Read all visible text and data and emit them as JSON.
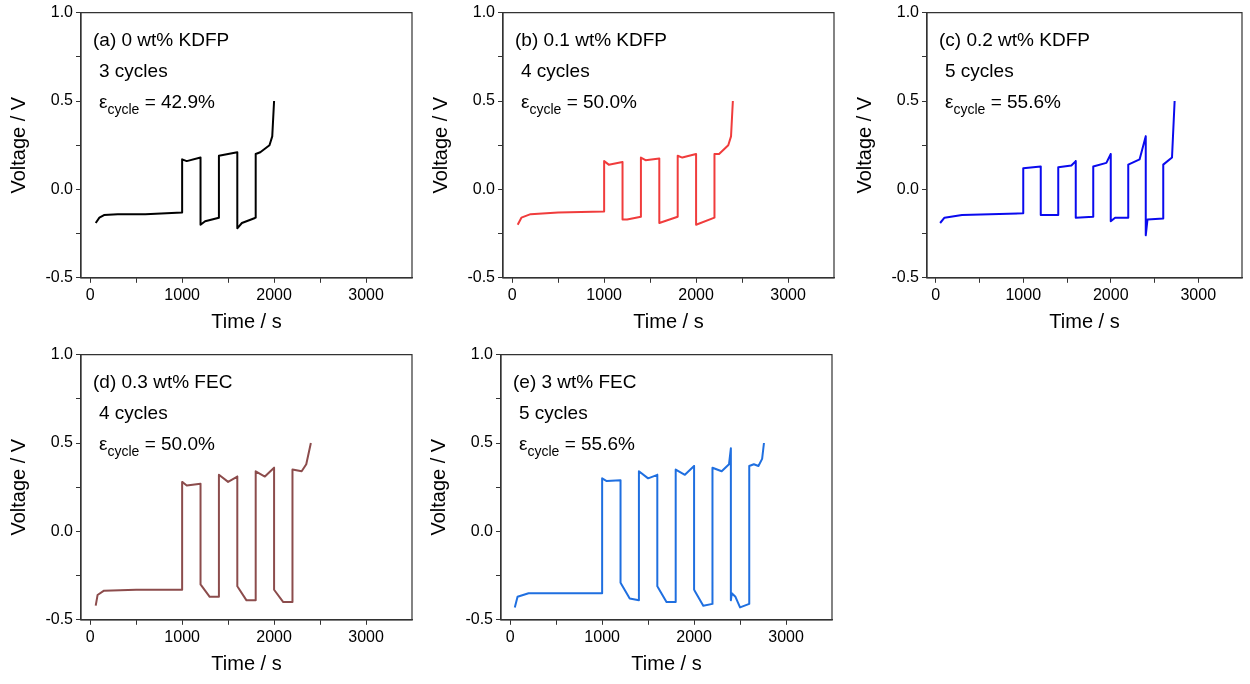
{
  "chart_data": [
    {
      "type": "line",
      "xlabel": "Time / s",
      "ylabel": "Voltage / V",
      "xlim": [
        -100,
        3500
      ],
      "ylim": [
        -0.5,
        1.0
      ],
      "grid": false,
      "legend": false,
      "marker": "none",
      "line_style": "solid",
      "xticks": [
        0,
        {
          "value": 500,
          "label": null
        },
        1000,
        {
          "value": 1500,
          "label": null
        },
        2000,
        {
          "value": 2500,
          "label": null
        },
        3000
      ],
      "yticks": [
        {
          "value": -0.5,
          "label": "-0.5"
        },
        {
          "value": -0.25,
          "label": null
        },
        {
          "value": 0,
          "label": "0.0"
        },
        {
          "value": 0.25,
          "label": null
        },
        {
          "value": 0.5,
          "label": "0.5"
        },
        {
          "value": 0.75,
          "label": null
        },
        {
          "value": 1,
          "label": "1.0"
        }
      ],
      "annotations": [
        "(a) 0 wt% KDFP",
        "3 cycles",
        "ε$_{cycle}$ = 42.9%"
      ],
      "series": [
        {
          "color": "#000000",
          "x": [
            60,
            100,
            150,
            300,
            600,
            1000,
            1000,
            1050,
            1200,
            1200,
            1250,
            1400,
            1400,
            1600,
            1600,
            1650,
            1800,
            1800,
            1850,
            1950,
            1980,
            2000
          ],
          "values": [
            -0.19,
            -0.16,
            -0.145,
            -0.14,
            -0.14,
            -0.13,
            0.17,
            0.16,
            0.18,
            -0.2,
            -0.18,
            -0.16,
            0.19,
            0.21,
            -0.22,
            -0.19,
            -0.16,
            0.2,
            0.21,
            0.25,
            0.3,
            0.5
          ]
        }
      ]
    },
    {
      "type": "line",
      "xlabel": "Time / s",
      "ylabel": "Voltage / V",
      "xlim": [
        -100,
        3500
      ],
      "ylim": [
        -0.5,
        1.0
      ],
      "grid": false,
      "legend": false,
      "marker": "none",
      "line_style": "solid",
      "xticks": [
        0,
        {
          "value": 500,
          "label": null
        },
        1000,
        {
          "value": 1500,
          "label": null
        },
        2000,
        {
          "value": 2500,
          "label": null
        },
        3000
      ],
      "yticks": [
        {
          "value": -0.5,
          "label": "-0.5"
        },
        {
          "value": -0.25,
          "label": null
        },
        {
          "value": 0,
          "label": "0.0"
        },
        {
          "value": 0.25,
          "label": null
        },
        {
          "value": 0.5,
          "label": "0.5"
        },
        {
          "value": 0.75,
          "label": null
        },
        {
          "value": 1,
          "label": "1.0"
        }
      ],
      "annotations": [
        "(b) 0.1 wt% KDFP",
        "4 cycles",
        "ε$_{cycle}$ = 50.0%"
      ],
      "series": [
        {
          "color": "#f03c3c",
          "x": [
            60,
            100,
            200,
            500,
            1000,
            1000,
            1050,
            1200,
            1200,
            1250,
            1400,
            1400,
            1450,
            1600,
            1600,
            1800,
            1800,
            1850,
            2000,
            2000,
            2200,
            2200,
            2250,
            2350,
            2380,
            2400
          ],
          "values": [
            -0.2,
            -0.16,
            -0.14,
            -0.13,
            -0.125,
            0.16,
            0.14,
            0.155,
            -0.17,
            -0.17,
            -0.155,
            0.18,
            0.165,
            0.175,
            -0.19,
            -0.155,
            0.19,
            0.18,
            0.2,
            -0.2,
            -0.16,
            0.2,
            0.2,
            0.25,
            0.3,
            0.5
          ]
        }
      ]
    },
    {
      "type": "line",
      "xlabel": "Time / s",
      "ylabel": "Voltage / V",
      "xlim": [
        -100,
        3500
      ],
      "ylim": [
        -0.5,
        1.0
      ],
      "grid": false,
      "legend": false,
      "marker": "none",
      "line_style": "solid",
      "xticks": [
        0,
        {
          "value": 500,
          "label": null
        },
        1000,
        {
          "value": 1500,
          "label": null
        },
        2000,
        {
          "value": 2500,
          "label": null
        },
        3000
      ],
      "yticks": [
        {
          "value": -0.5,
          "label": "-0.5"
        },
        {
          "value": -0.25,
          "label": null
        },
        {
          "value": 0,
          "label": "0.0"
        },
        {
          "value": 0.25,
          "label": null
        },
        {
          "value": 0.5,
          "label": "0.5"
        },
        {
          "value": 0.75,
          "label": null
        },
        {
          "value": 1,
          "label": "1.0"
        }
      ],
      "annotations": [
        "(c) 0.2 wt% KDFP",
        "5 cycles",
        "ε$_{cycle}$ = 55.6%"
      ],
      "series": [
        {
          "color": "#0a0aee",
          "x": [
            50,
            100,
            300,
            1000,
            1000,
            1200,
            1200,
            1400,
            1400,
            1550,
            1600,
            1600,
            1800,
            1800,
            1950,
            2000,
            2000,
            2050,
            2200,
            2200,
            2330,
            2400,
            2400,
            2420,
            2600,
            2600,
            2700,
            2730
          ],
          "values": [
            -0.19,
            -0.16,
            -0.145,
            -0.135,
            0.12,
            0.13,
            -0.145,
            -0.145,
            0.125,
            0.135,
            0.16,
            -0.16,
            -0.155,
            0.13,
            0.15,
            0.2,
            -0.18,
            -0.16,
            -0.16,
            0.14,
            0.17,
            0.3,
            -0.26,
            -0.17,
            -0.165,
            0.14,
            0.18,
            0.5
          ]
        }
      ]
    },
    {
      "type": "line",
      "xlabel": "Time / s",
      "ylabel": "Voltage / V",
      "xlim": [
        -100,
        3500
      ],
      "ylim": [
        -0.5,
        1.0
      ],
      "grid": false,
      "legend": false,
      "marker": "none",
      "line_style": "solid",
      "xticks": [
        0,
        {
          "value": 500,
          "label": null
        },
        1000,
        {
          "value": 1500,
          "label": null
        },
        2000,
        {
          "value": 2500,
          "label": null
        },
        3000
      ],
      "yticks": [
        {
          "value": -0.5,
          "label": "-0.5"
        },
        {
          "value": -0.25,
          "label": null
        },
        {
          "value": 0,
          "label": "0.0"
        },
        {
          "value": 0.25,
          "label": null
        },
        {
          "value": 0.5,
          "label": "0.5"
        },
        {
          "value": 0.75,
          "label": null
        },
        {
          "value": 1,
          "label": "1.0"
        }
      ],
      "annotations": [
        "(d) 0.3 wt% FEC",
        "4 cycles",
        "ε$_{cycle}$ = 50.0%"
      ],
      "series": [
        {
          "color": "#8c4c4c",
          "x": [
            60,
            80,
            150,
            500,
            1000,
            1000,
            1050,
            1200,
            1200,
            1300,
            1400,
            1400,
            1500,
            1600,
            1600,
            1700,
            1800,
            1800,
            1900,
            2000,
            2000,
            2100,
            2200,
            2200,
            2300,
            2350,
            2400
          ],
          "values": [
            -0.42,
            -0.36,
            -0.335,
            -0.33,
            -0.33,
            0.28,
            0.26,
            0.27,
            -0.3,
            -0.37,
            -0.37,
            0.32,
            0.28,
            0.31,
            -0.31,
            -0.39,
            -0.39,
            0.34,
            0.31,
            0.36,
            -0.33,
            -0.4,
            -0.4,
            0.35,
            0.34,
            0.38,
            0.5
          ]
        }
      ]
    },
    {
      "type": "line",
      "xlabel": "Time / s",
      "ylabel": "Voltage / V",
      "xlim": [
        -100,
        3500
      ],
      "ylim": [
        -0.5,
        1.0
      ],
      "grid": false,
      "legend": false,
      "marker": "none",
      "line_style": "solid",
      "xticks": [
        0,
        {
          "value": 500,
          "label": null
        },
        1000,
        {
          "value": 1500,
          "label": null
        },
        2000,
        {
          "value": 2500,
          "label": null
        },
        3000
      ],
      "yticks": [
        {
          "value": -0.5,
          "label": "-0.5"
        },
        {
          "value": -0.25,
          "label": null
        },
        {
          "value": 0,
          "label": "0.0"
        },
        {
          "value": 0.25,
          "label": null
        },
        {
          "value": 0.5,
          "label": "0.5"
        },
        {
          "value": 0.75,
          "label": null
        },
        {
          "value": 1,
          "label": "1.0"
        }
      ],
      "annotations": [
        "(e) 3 wt% FEC",
        "5 cycles",
        "ε$_{cycle}$ = 55.6%"
      ],
      "series": [
        {
          "color": "#1f6fe0",
          "x": [
            50,
            80,
            200,
            1000,
            1000,
            1050,
            1200,
            1200,
            1300,
            1400,
            1400,
            1500,
            1600,
            1600,
            1700,
            1800,
            1800,
            1900,
            2000,
            2000,
            2100,
            2200,
            2200,
            2300,
            2380,
            2400,
            2400,
            2410,
            2450,
            2500,
            2600,
            2600,
            2650,
            2700,
            2740,
            2760
          ],
          "values": [
            -0.43,
            -0.37,
            -0.35,
            -0.35,
            0.3,
            0.285,
            0.29,
            -0.29,
            -0.38,
            -0.39,
            0.34,
            0.3,
            0.32,
            -0.31,
            -0.4,
            -0.4,
            0.35,
            0.32,
            0.37,
            -0.33,
            -0.42,
            -0.41,
            0.36,
            0.34,
            0.38,
            0.47,
            -0.39,
            -0.35,
            -0.37,
            -0.43,
            -0.41,
            0.37,
            0.38,
            0.37,
            0.41,
            0.5
          ]
        }
      ]
    }
  ]
}
